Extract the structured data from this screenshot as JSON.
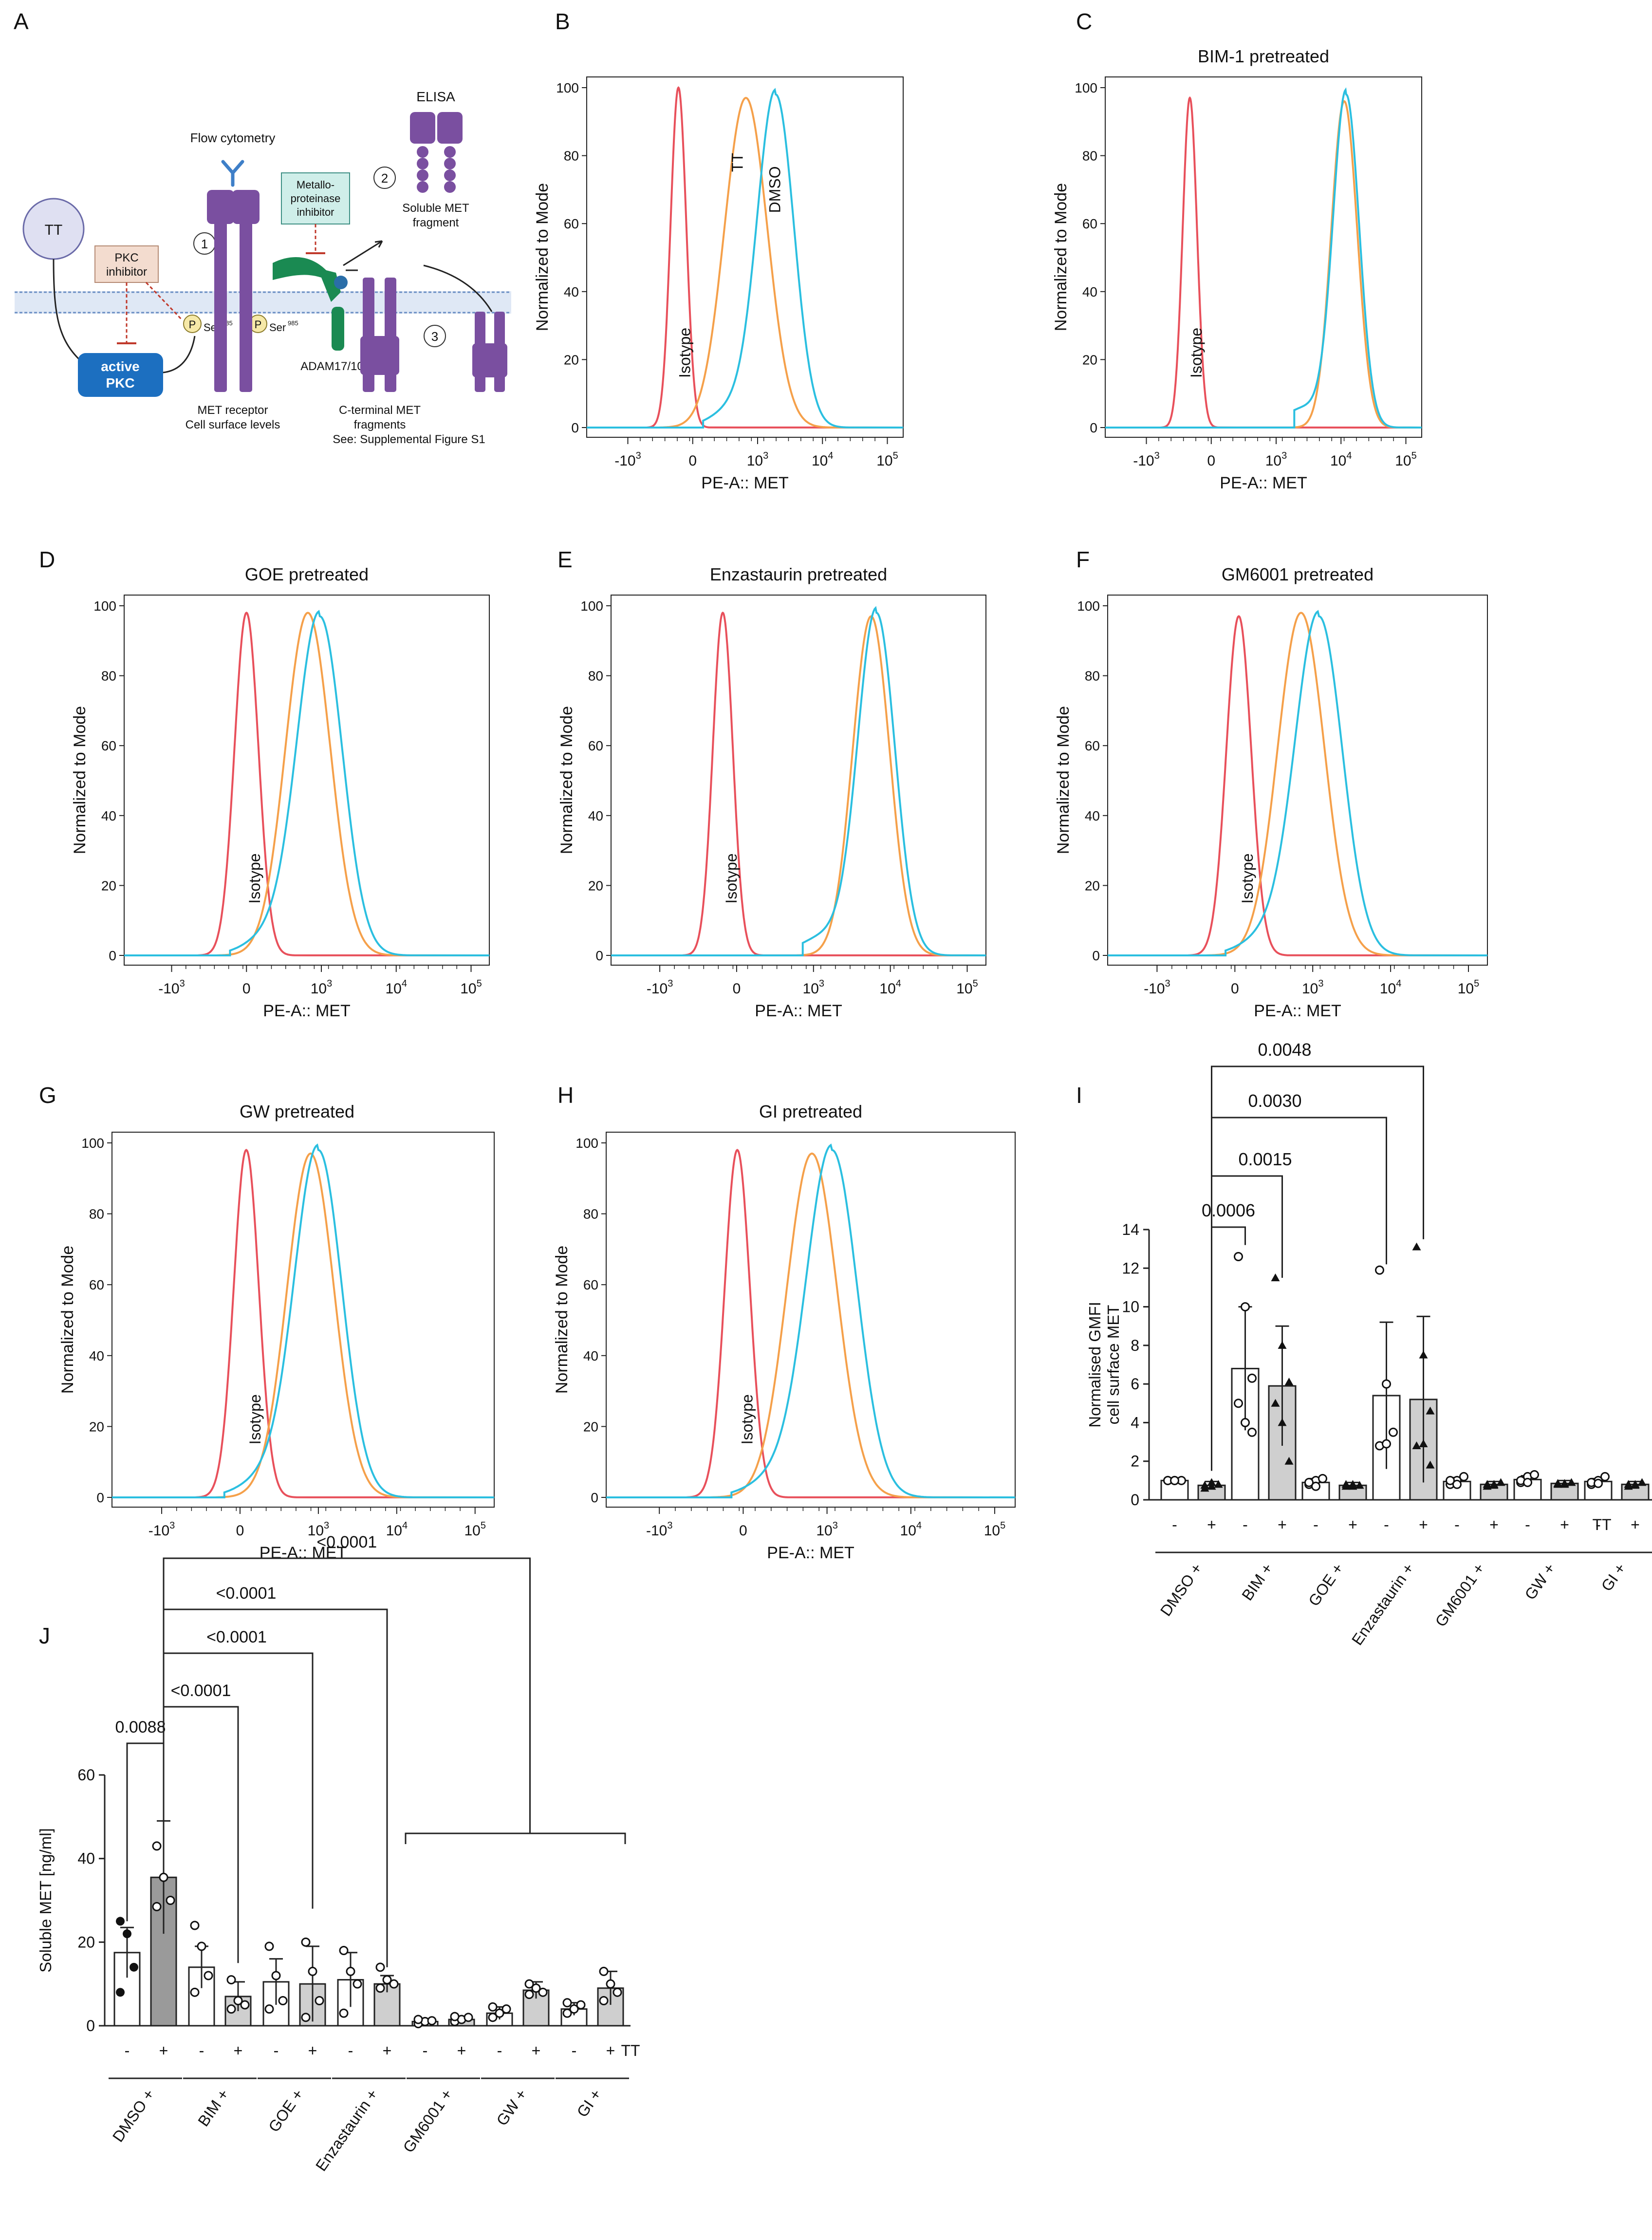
{
  "colors": {
    "isotype": "#e8505b",
    "tt": "#f5a04a",
    "dmso": "#2bbfe0",
    "purple": "#7a4fa0",
    "pkc_blue": "#1c6fc0",
    "adam_green": "#1a8a52",
    "membrane": "#6b8fc4",
    "gray_bar": "#cfcfcf"
  },
  "schematic": {
    "panel_letter": "A",
    "tt_label": "TT",
    "pkc_inhibitor": [
      "PKC",
      "inhibitor"
    ],
    "active_pkc": [
      "active",
      "PKC"
    ],
    "p_label": "P",
    "ser_label": "Ser",
    "ser_sup": "985",
    "flow_cytometry": "Flow cytometry",
    "step1": "1",
    "step2": "2",
    "step3": "3",
    "metallo_inhibitor": [
      "Metallo-",
      "proteinase",
      "inhibitor"
    ],
    "elisa": "ELISA",
    "soluble_met": [
      "Soluble MET",
      "fragment"
    ],
    "adam": "ADAM17/10",
    "met_receptor": [
      "MET receptor",
      "Cell surface levels"
    ],
    "cterm": [
      "C-terminal MET",
      "fragments",
      "See: Supplemental Figure S1"
    ]
  },
  "chart_data": [
    {
      "panel": "B",
      "type": "histogram",
      "title": "",
      "xlabel": "PE-A:: MET",
      "ylabel": "Normalized to Mode",
      "xticks": [
        "-10^3",
        "0",
        "10^3",
        "10^4",
        "10^5"
      ],
      "yticks": [
        0,
        20,
        40,
        60,
        80,
        100
      ],
      "ylim": [
        0,
        100
      ],
      "series": [
        {
          "name": "Isotype",
          "peak_x": 0.78,
          "width": 0.12,
          "height": 100
        },
        {
          "name": "TT",
          "peak_x": 1.82,
          "width": 0.33,
          "height": 97
        },
        {
          "name": "DMSO",
          "peak_x": 2.28,
          "width": 0.28,
          "height": 98
        }
      ],
      "labels": [
        {
          "text": "Isotype",
          "series": "Isotype"
        },
        {
          "text": "TT",
          "series": "TT"
        },
        {
          "text": "DMSO",
          "series": "DMSO"
        }
      ]
    },
    {
      "panel": "C",
      "type": "histogram",
      "title": "BIM-1 pretreated",
      "xlabel": "PE-A:: MET",
      "ylabel": "Normalized to Mode",
      "xticks": [
        "-10^3",
        "0",
        "10^3",
        "10^4",
        "10^5"
      ],
      "yticks": [
        0,
        20,
        40,
        60,
        80,
        100
      ],
      "ylim": [
        0,
        100
      ],
      "series": [
        {
          "name": "Isotype",
          "peak_x": 0.67,
          "width": 0.11,
          "height": 97
        },
        {
          "name": "TT",
          "peak_x": 3.05,
          "width": 0.2,
          "height": 96
        },
        {
          "name": "DMSO",
          "peak_x": 3.08,
          "width": 0.2,
          "height": 98
        }
      ],
      "labels": [
        {
          "text": "Isotype",
          "series": "Isotype"
        }
      ]
    },
    {
      "panel": "D",
      "type": "histogram",
      "title": "GOE pretreated",
      "xlabel": "PE-A:: MET",
      "ylabel": "Normalized to Mode",
      "xticks": [
        "-10^3",
        "0",
        "10^3",
        "10^4",
        "10^5"
      ],
      "yticks": [
        0,
        20,
        40,
        60,
        80,
        100
      ],
      "ylim": [
        0,
        100
      ],
      "series": [
        {
          "name": "Isotype",
          "peak_x": 1.0,
          "width": 0.16,
          "height": 98
        },
        {
          "name": "TT",
          "peak_x": 1.82,
          "width": 0.3,
          "height": 98
        },
        {
          "name": "DMSO",
          "peak_x": 1.98,
          "width": 0.3,
          "height": 97
        }
      ],
      "labels": [
        {
          "text": "Isotype",
          "series": "Isotype"
        }
      ]
    },
    {
      "panel": "E",
      "type": "histogram",
      "title": "Enzastaurin pretreated",
      "xlabel": "PE-A:: MET",
      "ylabel": "Normalized to Mode",
      "xticks": [
        "-10^3",
        "0",
        "10^3",
        "10^4",
        "10^5"
      ],
      "yticks": [
        0,
        20,
        40,
        60,
        80,
        100
      ],
      "ylim": [
        0,
        100
      ],
      "series": [
        {
          "name": "Isotype",
          "peak_x": 0.82,
          "width": 0.13,
          "height": 98
        },
        {
          "name": "TT",
          "peak_x": 2.75,
          "width": 0.24,
          "height": 97
        },
        {
          "name": "DMSO",
          "peak_x": 2.82,
          "width": 0.24,
          "height": 98
        }
      ],
      "labels": [
        {
          "text": "Isotype",
          "series": "Isotype"
        }
      ]
    },
    {
      "panel": "F",
      "type": "histogram",
      "title": "GM6001 pretreated",
      "xlabel": "PE-A:: MET",
      "ylabel": "Normalized to Mode",
      "xticks": [
        "-10^3",
        "0",
        "10^3",
        "10^4",
        "10^5"
      ],
      "yticks": [
        0,
        20,
        40,
        60,
        80,
        100
      ],
      "ylim": [
        0,
        100
      ],
      "series": [
        {
          "name": "Isotype",
          "peak_x": 1.05,
          "width": 0.16,
          "height": 97
        },
        {
          "name": "TT",
          "peak_x": 1.85,
          "width": 0.3,
          "height": 98
        },
        {
          "name": "DMSO",
          "peak_x": 2.08,
          "width": 0.3,
          "height": 97
        }
      ],
      "labels": [
        {
          "text": "Isotype",
          "series": "Isotype"
        }
      ]
    },
    {
      "panel": "G",
      "type": "histogram",
      "title": "GW pretreated",
      "xlabel": "PE-A:: MET",
      "ylabel": "Normalized to Mode",
      "xticks": [
        "-10^3",
        "0",
        "10^3",
        "10^4",
        "10^5"
      ],
      "yticks": [
        0,
        20,
        40,
        60,
        80,
        100
      ],
      "ylim": [
        0,
        100
      ],
      "series": [
        {
          "name": "Isotype",
          "peak_x": 1.08,
          "width": 0.16,
          "height": 98
        },
        {
          "name": "TT",
          "peak_x": 1.9,
          "width": 0.3,
          "height": 97
        },
        {
          "name": "DMSO",
          "peak_x": 2.0,
          "width": 0.3,
          "height": 98
        }
      ],
      "labels": [
        {
          "text": "Isotype",
          "series": "Isotype"
        }
      ]
    },
    {
      "panel": "H",
      "type": "histogram",
      "title": "GI pretreated",
      "xlabel": "PE-A:: MET",
      "ylabel": "Normalized to Mode",
      "xticks": [
        "-10^3",
        "0",
        "10^3",
        "10^4",
        "10^5"
      ],
      "yticks": [
        0,
        20,
        40,
        60,
        80,
        100
      ],
      "ylim": [
        0,
        100
      ],
      "series": [
        {
          "name": "Isotype",
          "peak_x": 0.93,
          "width": 0.15,
          "height": 98
        },
        {
          "name": "TT",
          "peak_x": 1.82,
          "width": 0.3,
          "height": 97
        },
        {
          "name": "DMSO",
          "peak_x": 2.06,
          "width": 0.3,
          "height": 98
        }
      ],
      "labels": [
        {
          "text": "Isotype",
          "series": "Isotype"
        }
      ]
    },
    {
      "panel": "I",
      "type": "bar",
      "ylabel": [
        "Normalised GMFI",
        "cell surface MET"
      ],
      "yticks": [
        0,
        2,
        4,
        6,
        8,
        10,
        12,
        14
      ],
      "ylim": [
        0,
        14
      ],
      "tt_label": "TT",
      "groups": [
        "DMSO +",
        "BIM +",
        "GOE +",
        "Enzastaurin +",
        "GM6001 +",
        "GW +",
        "GI +"
      ],
      "conditions": [
        "-",
        "+"
      ],
      "means": [
        [
          1.0,
          0.75
        ],
        [
          6.8,
          5.9
        ],
        [
          0.9,
          0.75
        ],
        [
          5.4,
          5.2
        ],
        [
          0.95,
          0.8
        ],
        [
          1.05,
          0.85
        ],
        [
          0.95,
          0.8
        ]
      ],
      "errors": [
        [
          0.1,
          0.2
        ],
        [
          3.2,
          3.1
        ],
        [
          0.2,
          0.15
        ],
        [
          3.8,
          4.3
        ],
        [
          0.2,
          0.15
        ],
        [
          0.2,
          0.15
        ],
        [
          0.15,
          0.15
        ]
      ],
      "points": [
        [
          [
            1.0,
            1.0,
            1.0,
            1.0,
            1.0
          ],
          [
            0.6,
            0.7,
            0.8,
            0.75,
            0.9
          ]
        ],
        [
          [
            12.6,
            10.0,
            6.3,
            5.0,
            4.0,
            3.5
          ],
          [
            11.5,
            8.0,
            6.1,
            5.0,
            4.0,
            2.0
          ]
        ],
        [
          [
            0.8,
            1.0,
            1.1,
            0.9,
            0.7
          ],
          [
            0.7,
            0.8,
            0.75,
            0.8,
            0.7
          ]
        ],
        [
          [
            11.9,
            6.0,
            3.5,
            2.8,
            2.9
          ],
          [
            13.1,
            7.5,
            4.6,
            2.8,
            2.9,
            1.8
          ]
        ],
        [
          [
            0.8,
            1.0,
            1.2,
            1.0,
            0.8
          ],
          [
            0.7,
            0.8,
            0.9,
            0.8,
            0.75
          ]
        ],
        [
          [
            0.9,
            1.2,
            1.3,
            1.0,
            0.9
          ],
          [
            0.8,
            0.85,
            0.9,
            0.85,
            0.8
          ]
        ],
        [
          [
            0.8,
            1.0,
            1.2,
            0.9,
            0.85
          ],
          [
            0.7,
            0.8,
            0.9,
            0.8,
            0.75
          ]
        ]
      ],
      "brackets": [
        {
          "label": "0.0006",
          "from": [
            0,
            1
          ],
          "to": [
            1,
            0
          ]
        },
        {
          "label": "0.0015",
          "from": [
            0,
            1
          ],
          "to": [
            1,
            1
          ]
        },
        {
          "label": "0.0030",
          "from": [
            0,
            1
          ],
          "to": [
            3,
            0
          ]
        },
        {
          "label": "0.0048",
          "from": [
            0,
            1
          ],
          "to": [
            3,
            1
          ]
        }
      ]
    },
    {
      "panel": "J",
      "type": "bar",
      "ylabel": "Soluble MET [ng/ml]",
      "yticks": [
        0,
        20,
        40,
        60
      ],
      "ylim": [
        0,
        60
      ],
      "tt_label": "TT",
      "groups": [
        "DMSO +",
        "BIM +",
        "GOE +",
        "Enzastaurin +",
        "GM6001 +",
        "GW +",
        "GI +"
      ],
      "conditions": [
        "-",
        "+"
      ],
      "means": [
        [
          17.5,
          35.5
        ],
        [
          14.0,
          7.0
        ],
        [
          10.5,
          10.0
        ],
        [
          11.0,
          10.0
        ],
        [
          1.0,
          1.5
        ],
        [
          3.0,
          8.5
        ],
        [
          4.0,
          9.0
        ]
      ],
      "errors": [
        [
          6.0,
          13.5
        ],
        [
          5.0,
          3.5
        ],
        [
          5.5,
          9.0
        ],
        [
          6.5,
          2.0
        ],
        [
          0.5,
          0.8
        ],
        [
          1.5,
          2.0
        ],
        [
          1.5,
          4.0
        ]
      ],
      "points": [
        [
          [
            25.0,
            22.0,
            14.0,
            8.0
          ],
          [
            43.0,
            35.5,
            30.0,
            28.5
          ]
        ],
        [
          [
            24.0,
            19.0,
            12.0,
            8.0
          ],
          [
            11.0,
            6.0,
            5.0,
            4.0
          ]
        ],
        [
          [
            19.0,
            12.0,
            6.0,
            4.0
          ],
          [
            20.0,
            13.0,
            6.0,
            2.0
          ]
        ],
        [
          [
            18.0,
            13.0,
            10.0,
            3.0
          ],
          [
            14.0,
            11.0,
            10.0,
            9.0
          ]
        ],
        [
          [
            0.5,
            1.0,
            1.2,
            1.5
          ],
          [
            1.0,
            1.5,
            2.0,
            2.2
          ]
        ],
        [
          [
            2.0,
            3.0,
            4.0,
            4.5
          ],
          [
            10.0,
            9.0,
            8.0,
            7.5
          ]
        ],
        [
          [
            3.0,
            4.0,
            5.0,
            5.5
          ],
          [
            13.0,
            10.0,
            8.0,
            6.0
          ]
        ]
      ],
      "brackets": [
        {
          "label": "0.0088",
          "from": [
            0,
            0
          ],
          "to": [
            0,
            1
          ]
        },
        {
          "label": "<0.0001",
          "from": [
            0,
            1
          ],
          "to": [
            1,
            1
          ]
        },
        {
          "label": "<0.0001",
          "from": [
            0,
            1
          ],
          "to": [
            2,
            1
          ]
        },
        {
          "label": "<0.0001",
          "from": [
            0,
            1
          ],
          "to": [
            3,
            1
          ]
        },
        {
          "label": "<0.0001",
          "from": [
            0,
            1
          ],
          "to": [
            4,
            0
          ],
          "group_span": [
            4,
            6
          ]
        }
      ]
    }
  ]
}
